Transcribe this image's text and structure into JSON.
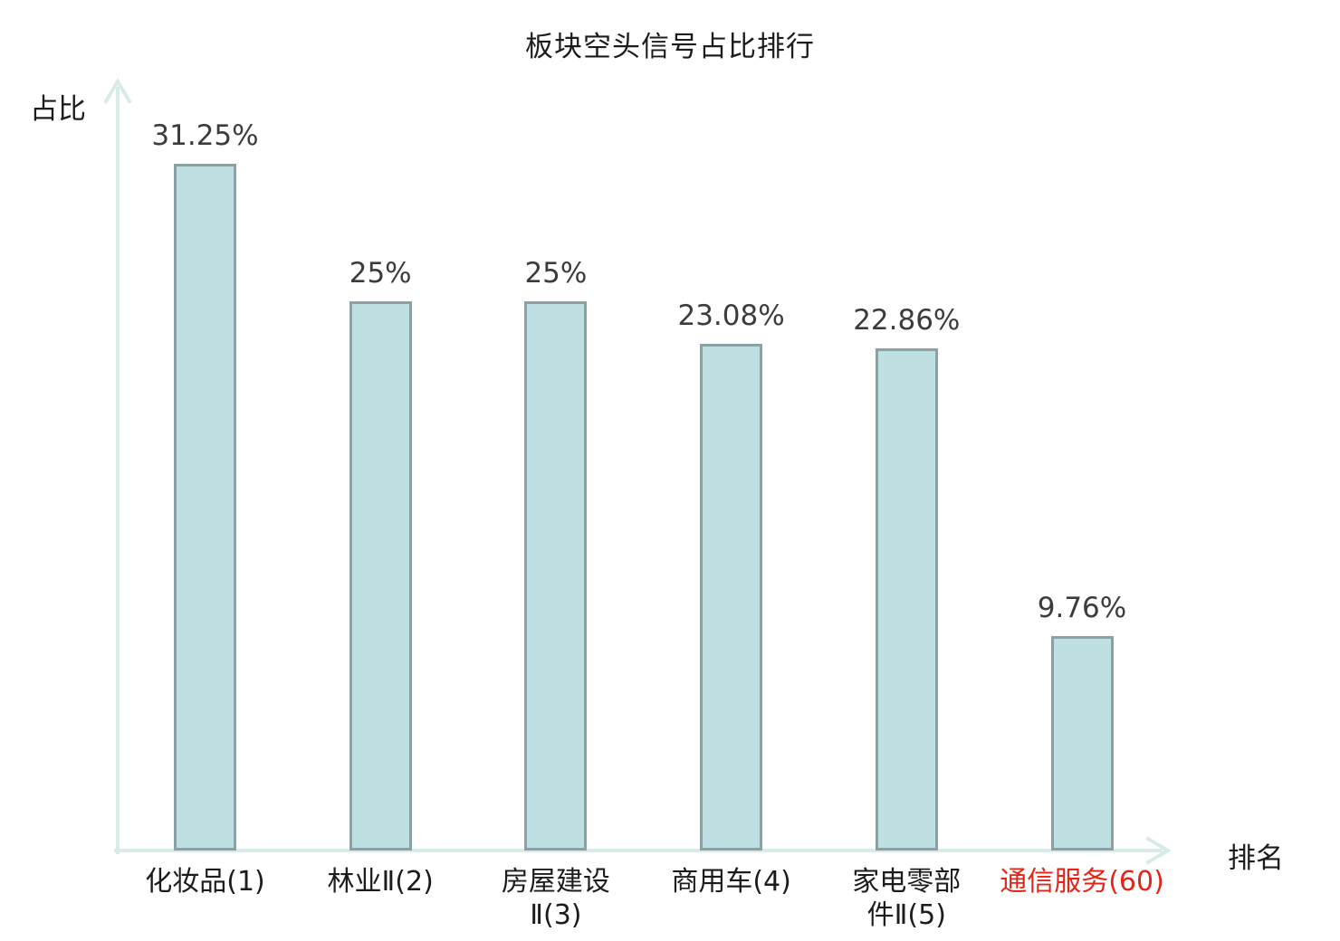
{
  "page": {
    "background": "#ffffff"
  },
  "chart_data": {
    "type": "bar",
    "title": "板块空头信号占比排行",
    "xlabel": "排名",
    "ylabel": "占比",
    "categories": [
      "化妆品(1)",
      "林业Ⅱ(2)",
      "房屋建设Ⅱ(3)",
      "商用车(4)",
      "家电零部件Ⅱ(5)",
      "通信服务(60)"
    ],
    "category_display": [
      "化妆品(1)",
      "林业Ⅱ(2)",
      "房屋建设\nⅡ(3)",
      "商用车(4)",
      "家电零部\n件Ⅱ(5)",
      "通信服务(60)"
    ],
    "values": [
      31.25,
      25,
      25,
      23.08,
      22.86,
      9.76
    ],
    "value_labels": [
      "31.25%",
      "25%",
      "25%",
      "23.08%",
      "22.86%",
      "9.76%"
    ],
    "highlight_index": 5,
    "ylim": [
      0,
      35
    ],
    "grid": false,
    "legend": null,
    "colors": {
      "bar_fill": "#bfe0e3",
      "bar_border": "#8aa2a5",
      "axis": "#d7ebe9",
      "value_label": "#3c3c3c",
      "category_label": "#1c1c1c",
      "highlight": "#e42417",
      "title": "#1c1c1c",
      "background": "#ffffff"
    }
  }
}
